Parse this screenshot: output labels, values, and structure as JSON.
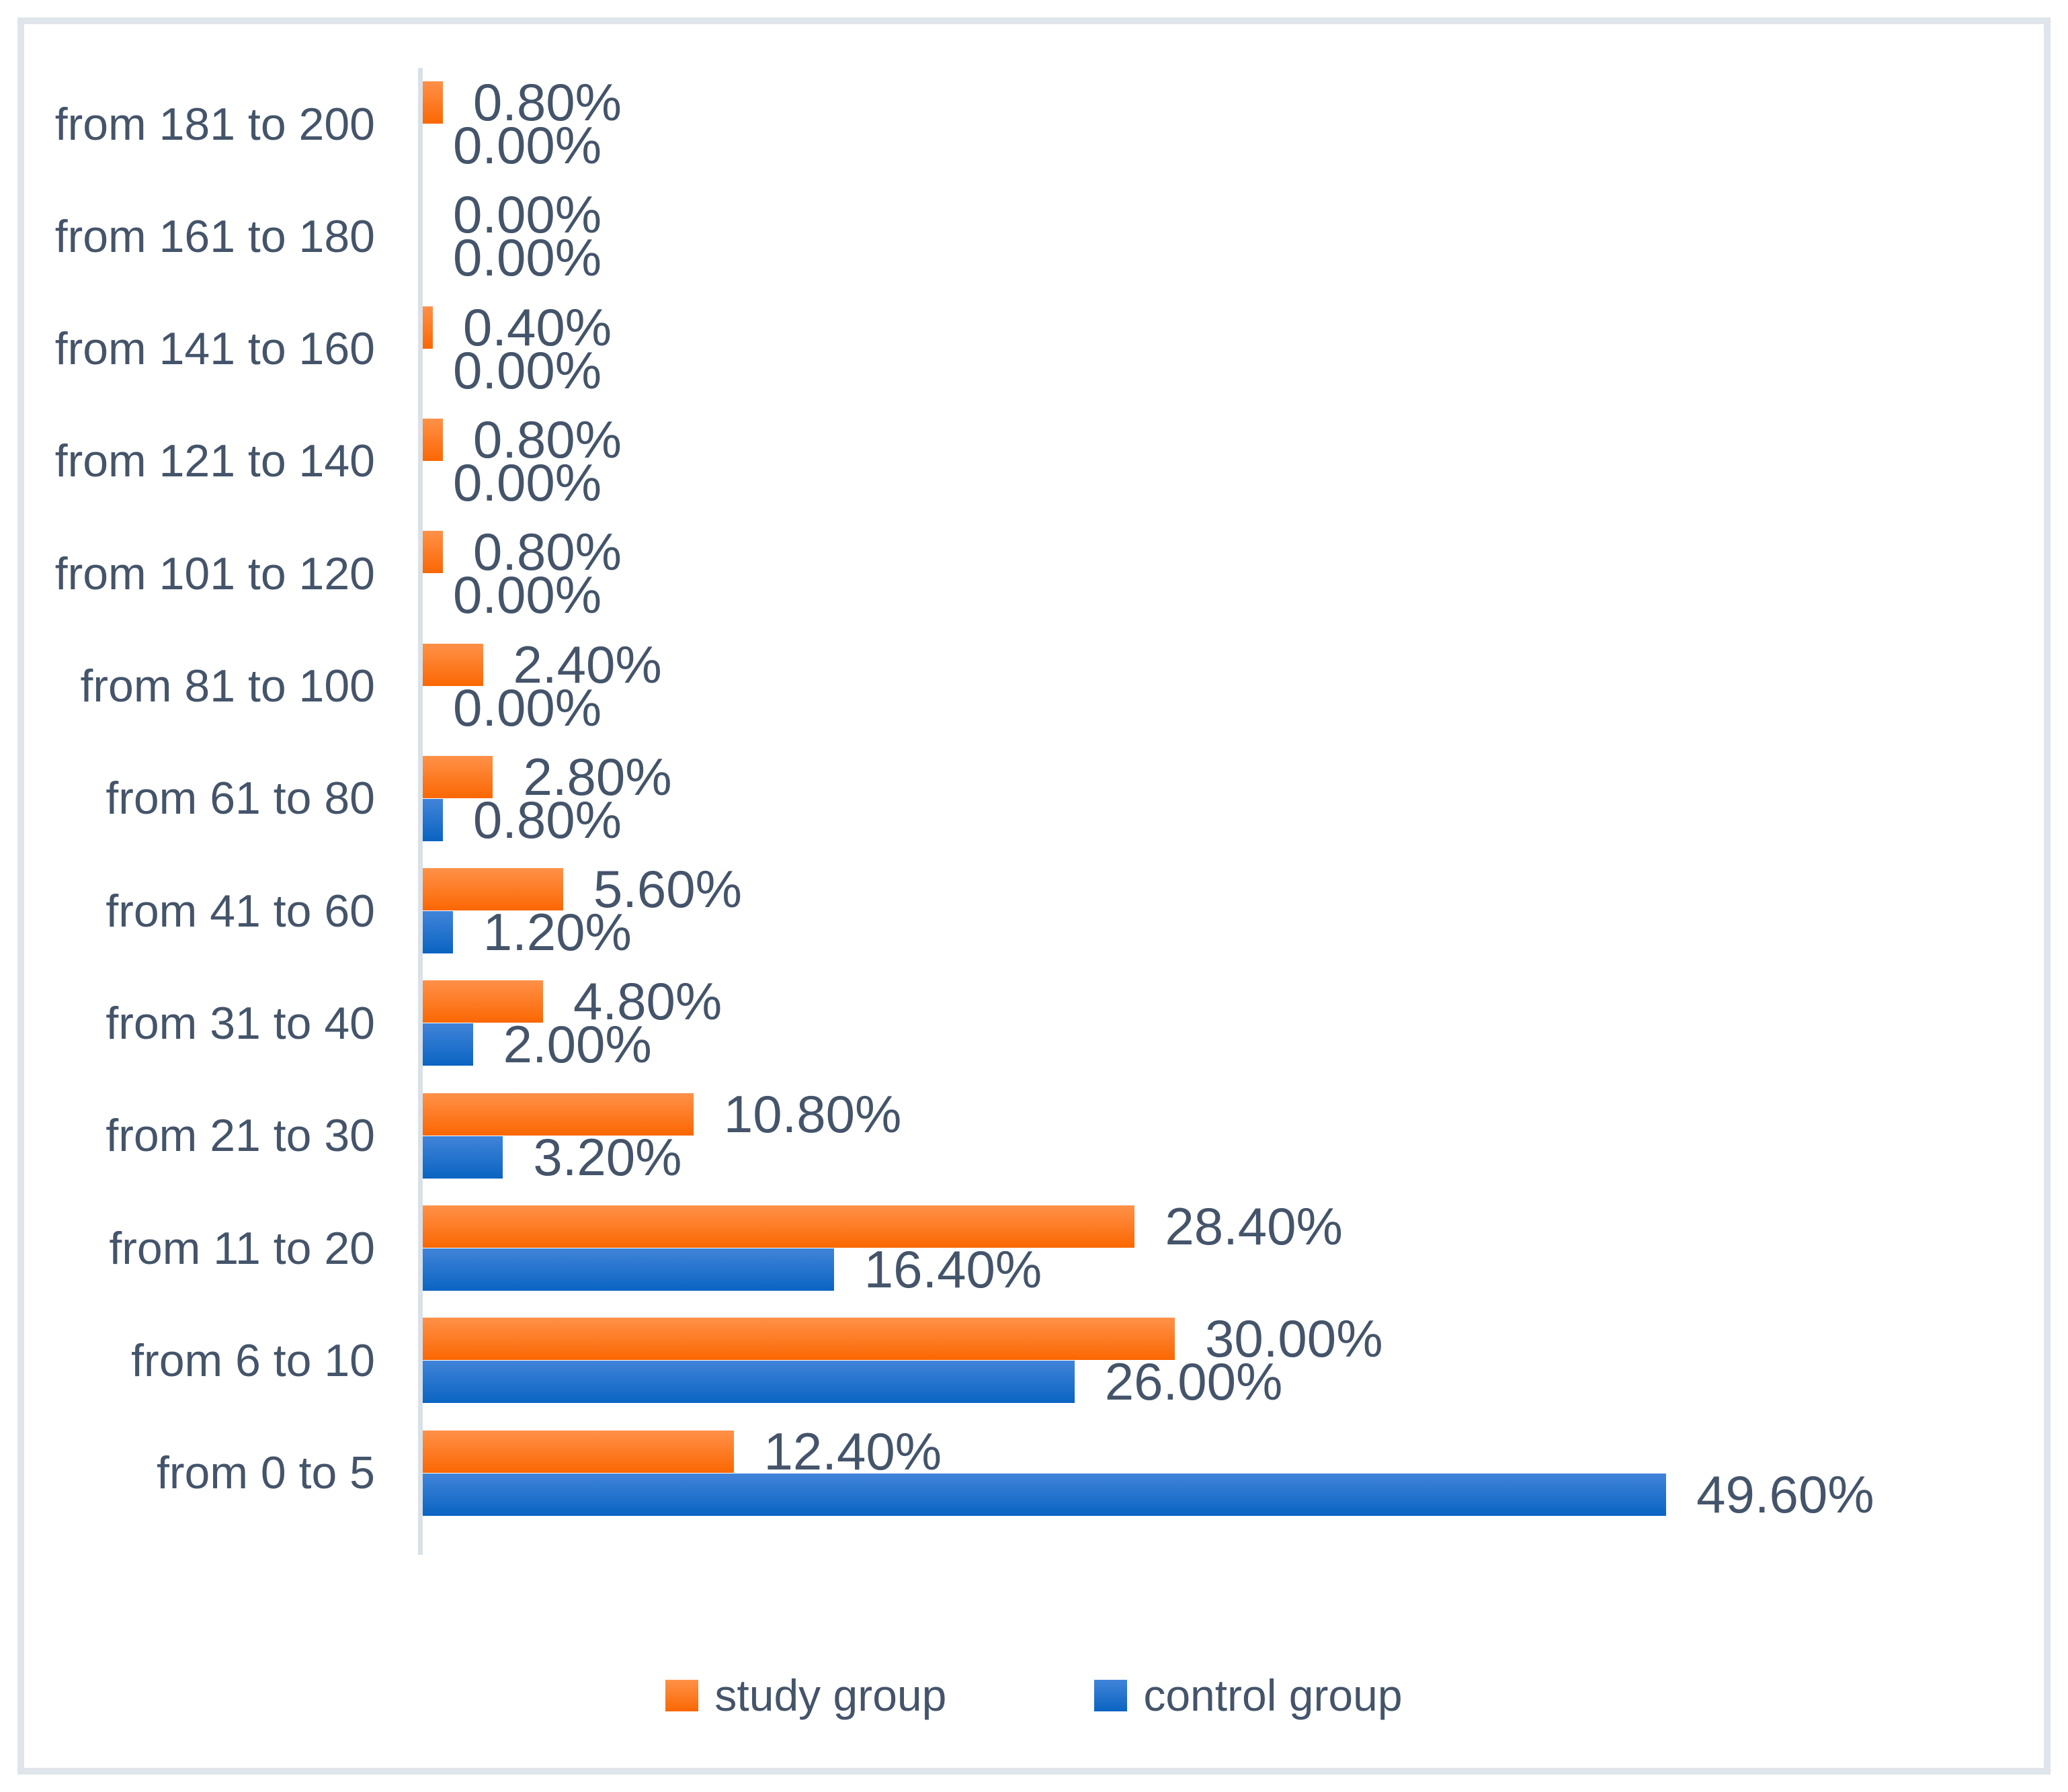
{
  "chart_data": {
    "type": "bar",
    "orientation": "horizontal",
    "title": "",
    "xlabel": "",
    "ylabel": "",
    "grid": false,
    "value_axis_visible": false,
    "xlim": [
      0,
      64.5
    ],
    "categories": [
      "from 181 to 200",
      "from 161 to 180",
      "from 141 to 160",
      "from 121 to 140",
      "from 101 to 120",
      "from 81 to 100",
      "from 61 to 80",
      "from 41 to 60",
      "from 31 to 40",
      "from 21 to 30",
      "from 11 to 20",
      "from 6 to 10",
      "from 0 to 5"
    ],
    "series": [
      {
        "name": "study group",
        "values": [
          0.8,
          0.0,
          0.4,
          0.8,
          0.8,
          2.4,
          2.8,
          5.6,
          4.8,
          10.8,
          28.4,
          30.0,
          12.4
        ],
        "labels": [
          "0.80%",
          "0.00%",
          "0.40%",
          "0.80%",
          "0.80%",
          "2.40%",
          "2.80%",
          "5.60%",
          "4.80%",
          "10.80%",
          "28.40%",
          "30.00%",
          "12.40%"
        ],
        "color_top": "#FF9149",
        "color_bottom": "#FB6702"
      },
      {
        "name": "control group",
        "values": [
          0.0,
          0.0,
          0.0,
          0.0,
          0.0,
          0.0,
          0.8,
          1.2,
          2.0,
          3.2,
          16.4,
          26.0,
          49.6
        ],
        "labels": [
          "0.00%",
          "0.00%",
          "0.00%",
          "0.00%",
          "0.00%",
          "0.00%",
          "0.80%",
          "1.20%",
          "2.00%",
          "3.20%",
          "16.40%",
          "26.00%",
          "49.60%"
        ],
        "color_top": "#4184D9",
        "color_bottom": "#0A64C2"
      }
    ],
    "data_label_position": "outside_end",
    "legend": {
      "position": "bottom",
      "items": [
        "study group",
        "control group"
      ]
    }
  },
  "styles": {
    "text_color": "#44546A",
    "axis_line_color": "#D9E1E8",
    "frame_border_color": "#DFE5EA",
    "background": "#FFFFFF"
  }
}
